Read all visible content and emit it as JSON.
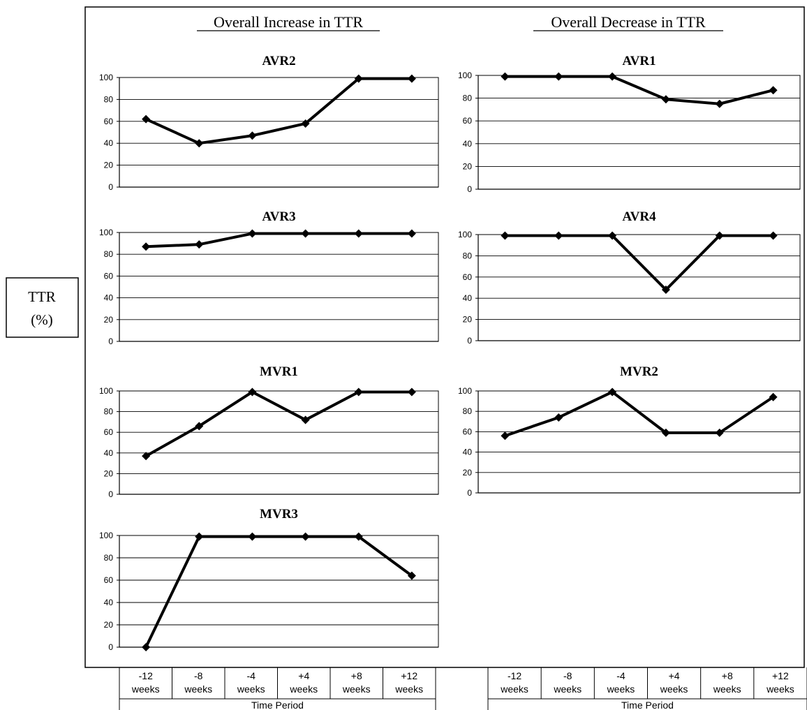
{
  "y_label": {
    "line1": "TTR",
    "line2": "(%)"
  },
  "column_headings": [
    "Overall Increase in TTR",
    "Overall Decrease in TTR"
  ],
  "time_axis": {
    "ticks": [
      [
        "-12",
        "weeks"
      ],
      [
        "-8",
        "weeks"
      ],
      [
        "-4",
        "weeks"
      ],
      [
        "+4",
        "weeks"
      ],
      [
        "+8",
        "weeks"
      ],
      [
        "+12",
        "weeks"
      ]
    ],
    "label": "Time Period"
  },
  "chart_data": [
    {
      "type": "line",
      "title": "AVR2",
      "group": "Overall Increase in TTR",
      "ylim": [
        0,
        100
      ],
      "yticks": [
        0,
        20,
        40,
        60,
        80,
        100
      ],
      "grid": true,
      "values": [
        62,
        40,
        47,
        58,
        99,
        99
      ]
    },
    {
      "type": "line",
      "title": "AVR1",
      "group": "Overall Decrease in TTR",
      "ylim": [
        0,
        100
      ],
      "yticks": [
        0,
        20,
        40,
        60,
        80,
        100
      ],
      "grid": true,
      "values": [
        99,
        99,
        99,
        79,
        75,
        87
      ]
    },
    {
      "type": "line",
      "title": "AVR3",
      "group": "Overall Increase in TTR",
      "ylim": [
        0,
        100
      ],
      "yticks": [
        0,
        20,
        40,
        60,
        80,
        100
      ],
      "grid": true,
      "values": [
        87,
        89,
        99,
        99,
        99,
        99
      ]
    },
    {
      "type": "line",
      "title": "AVR4",
      "group": "Overall Decrease in TTR",
      "ylim": [
        0,
        100
      ],
      "yticks": [
        0,
        20,
        40,
        60,
        80,
        100
      ],
      "grid": true,
      "values": [
        99,
        99,
        99,
        48,
        99,
        99
      ]
    },
    {
      "type": "line",
      "title": "MVR1",
      "group": "Overall Increase in TTR",
      "ylim": [
        0,
        100
      ],
      "yticks": [
        0,
        20,
        40,
        60,
        80,
        100
      ],
      "grid": true,
      "values": [
        37,
        66,
        99,
        72,
        99,
        99
      ]
    },
    {
      "type": "line",
      "title": "MVR2",
      "group": "Overall Decrease in TTR",
      "ylim": [
        0,
        100
      ],
      "yticks": [
        0,
        20,
        40,
        60,
        80,
        100
      ],
      "grid": true,
      "values": [
        56,
        74,
        99,
        59,
        59,
        94
      ]
    },
    {
      "type": "line",
      "title": "MVR3",
      "group": "Overall Increase in TTR",
      "ylim": [
        0,
        100
      ],
      "yticks": [
        0,
        20,
        40,
        60,
        80,
        100
      ],
      "grid": true,
      "values": [
        0,
        99,
        99,
        99,
        99,
        64
      ]
    }
  ]
}
